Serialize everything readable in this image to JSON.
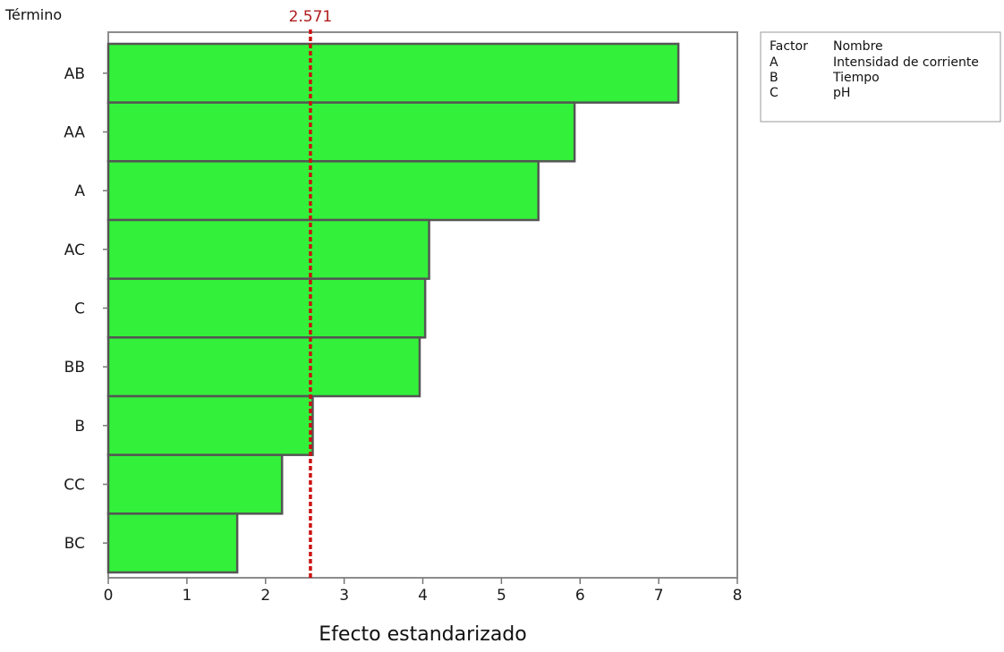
{
  "chart_data": {
    "type": "bar",
    "orientation": "horizontal",
    "categories": [
      "AB",
      "AA",
      "A",
      "AC",
      "C",
      "BB",
      "B",
      "CC",
      "BC"
    ],
    "values": [
      7.25,
      5.93,
      5.47,
      4.08,
      4.03,
      3.96,
      2.6,
      2.21,
      1.64
    ],
    "xlabel": "Efecto estandarizado",
    "ylabel": "Término",
    "xlim": [
      0,
      8
    ],
    "xticks": [
      0,
      1,
      2,
      3,
      4,
      5,
      6,
      7,
      8
    ],
    "xtick_labels": [
      "0",
      "1",
      "2",
      "3",
      "4",
      "5",
      "6",
      "7",
      "8"
    ],
    "reference_line": {
      "value": 2.571,
      "label": "2.571",
      "color": "#cc1111"
    },
    "bar_color": "#33f03a",
    "bar_edge_color": "#555555",
    "grid": false,
    "legend": {
      "placement": "right-top",
      "header": [
        "Factor",
        "Nombre"
      ],
      "rows": [
        [
          "A",
          "Intensidad de corriente"
        ],
        [
          "B",
          "Tiempo"
        ],
        [
          "C",
          "pH"
        ]
      ]
    }
  }
}
